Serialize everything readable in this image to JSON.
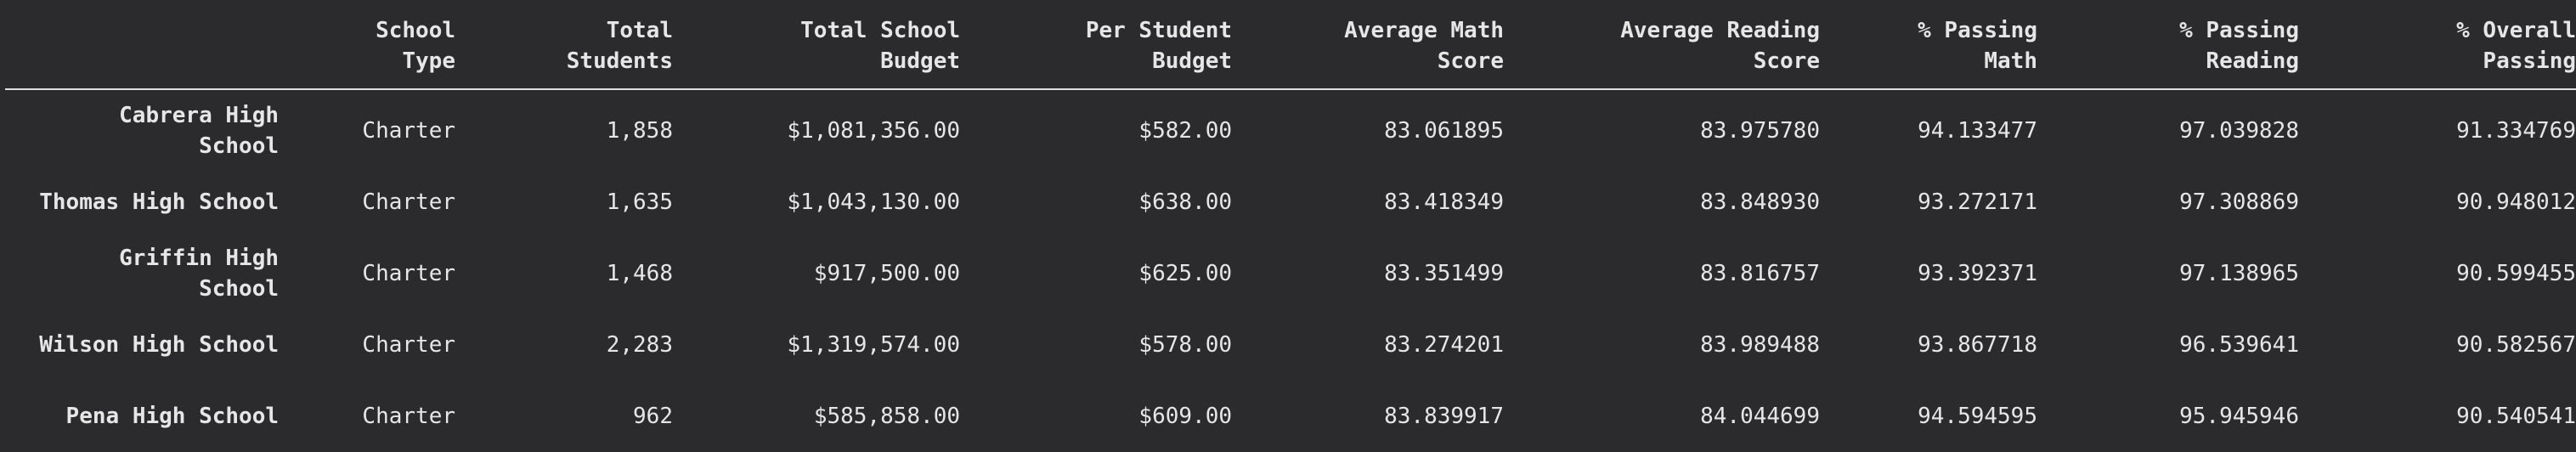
{
  "table": {
    "headers": [
      "",
      "School\nType",
      "Total\nStudents",
      "Total School\nBudget",
      "Per Student\nBudget",
      "Average Math\nScore",
      "Average Reading\nScore",
      "% Passing\nMath",
      "% Passing\nReading",
      "% Overall\nPassing"
    ],
    "rows": [
      {
        "name": "Cabrera High\nSchool",
        "cells": [
          "Charter",
          "1,858",
          "$1,081,356.00",
          "$582.00",
          "83.061895",
          "83.975780",
          "94.133477",
          "97.039828",
          "91.334769"
        ]
      },
      {
        "name": "Thomas High School",
        "cells": [
          "Charter",
          "1,635",
          "$1,043,130.00",
          "$638.00",
          "83.418349",
          "83.848930",
          "93.272171",
          "97.308869",
          "90.948012"
        ]
      },
      {
        "name": "Griffin High\nSchool",
        "cells": [
          "Charter",
          "1,468",
          "$917,500.00",
          "$625.00",
          "83.351499",
          "83.816757",
          "93.392371",
          "97.138965",
          "90.599455"
        ]
      },
      {
        "name": "Wilson High School",
        "cells": [
          "Charter",
          "2,283",
          "$1,319,574.00",
          "$578.00",
          "83.274201",
          "83.989488",
          "93.867718",
          "96.539641",
          "90.582567"
        ]
      },
      {
        "name": "Pena High School",
        "cells": [
          "Charter",
          "962",
          "$585,858.00",
          "$609.00",
          "83.839917",
          "84.044699",
          "94.594595",
          "95.945946",
          "90.540541"
        ]
      }
    ]
  }
}
